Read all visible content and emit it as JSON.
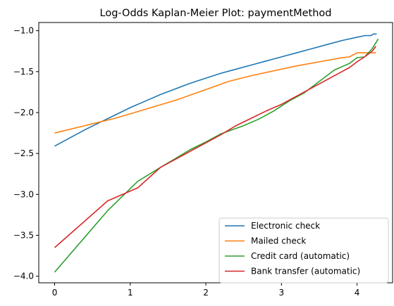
{
  "chart_data": {
    "type": "line",
    "title": "Log-Odds Kaplan-Meier Plot: paymentMethod",
    "xlabel": "",
    "ylabel": "",
    "xlim": [
      -0.21,
      4.47
    ],
    "ylim": [
      -4.08,
      -0.9
    ],
    "xticks": [
      0,
      1,
      2,
      3,
      4
    ],
    "xtick_labels": [
      "0",
      "1",
      "2",
      "3",
      "4"
    ],
    "yticks": [
      -4.0,
      -3.5,
      -3.0,
      -2.5,
      -2.0,
      -1.5,
      -1.0
    ],
    "ytick_labels": [
      "−4.0",
      "−3.5",
      "−3.0",
      "−2.5",
      "−2.0",
      "−1.5",
      "−1.0"
    ],
    "grid": false,
    "legend_position": "lower-right",
    "series": [
      {
        "name": "Electronic check",
        "color": "#1f77b4",
        "x": [
          0,
          0.2,
          0.4,
          0.6,
          0.8,
          1.0,
          1.2,
          1.4,
          1.6,
          1.8,
          2.0,
          2.2,
          2.4,
          2.6,
          2.8,
          3.0,
          3.2,
          3.4,
          3.6,
          3.8,
          4.0,
          4.1,
          4.18,
          4.22,
          4.26
        ],
        "y": [
          -2.41,
          -2.31,
          -2.21,
          -2.12,
          -2.03,
          -1.94,
          -1.86,
          -1.78,
          -1.71,
          -1.64,
          -1.58,
          -1.52,
          -1.47,
          -1.42,
          -1.37,
          -1.32,
          -1.27,
          -1.22,
          -1.17,
          -1.12,
          -1.08,
          -1.06,
          -1.06,
          -1.04,
          -1.04
        ]
      },
      {
        "name": "Mailed check",
        "color": "#ff7f0e",
        "x": [
          0,
          0.4,
          0.8,
          1.2,
          1.6,
          2.0,
          2.3,
          2.6,
          2.9,
          3.2,
          3.5,
          3.8,
          3.9,
          4.0,
          4.2,
          4.25
        ],
        "y": [
          -2.25,
          -2.16,
          -2.07,
          -1.96,
          -1.85,
          -1.72,
          -1.62,
          -1.55,
          -1.49,
          -1.43,
          -1.38,
          -1.33,
          -1.32,
          -1.27,
          -1.27,
          -1.27
        ]
      },
      {
        "name": "Credit card (automatic)",
        "color": "#2ca02c",
        "x": [
          0,
          0.7,
          1.1,
          1.4,
          1.6,
          1.8,
          2.0,
          2.2,
          2.5,
          2.7,
          2.9,
          3.1,
          3.3,
          3.5,
          3.7,
          3.9,
          4.0,
          4.1,
          4.2,
          4.28
        ],
        "y": [
          -3.95,
          -3.2,
          -2.84,
          -2.67,
          -2.56,
          -2.45,
          -2.36,
          -2.26,
          -2.16,
          -2.08,
          -1.98,
          -1.86,
          -1.76,
          -1.62,
          -1.48,
          -1.4,
          -1.33,
          -1.32,
          -1.22,
          -1.1
        ]
      },
      {
        "name": "Bank transfer (automatic)",
        "color": "#d62728",
        "x": [
          0,
          0.7,
          1.1,
          1.4,
          1.6,
          1.8,
          2.0,
          2.2,
          2.4,
          2.6,
          2.8,
          3.0,
          3.2,
          3.4,
          3.6,
          3.8,
          3.9,
          4.0,
          4.1,
          4.2,
          4.25
        ],
        "y": [
          -3.65,
          -3.08,
          -2.92,
          -2.67,
          -2.57,
          -2.47,
          -2.37,
          -2.27,
          -2.16,
          -2.07,
          -1.98,
          -1.9,
          -1.8,
          -1.7,
          -1.6,
          -1.5,
          -1.45,
          -1.38,
          -1.32,
          -1.25,
          -1.19
        ]
      }
    ]
  }
}
